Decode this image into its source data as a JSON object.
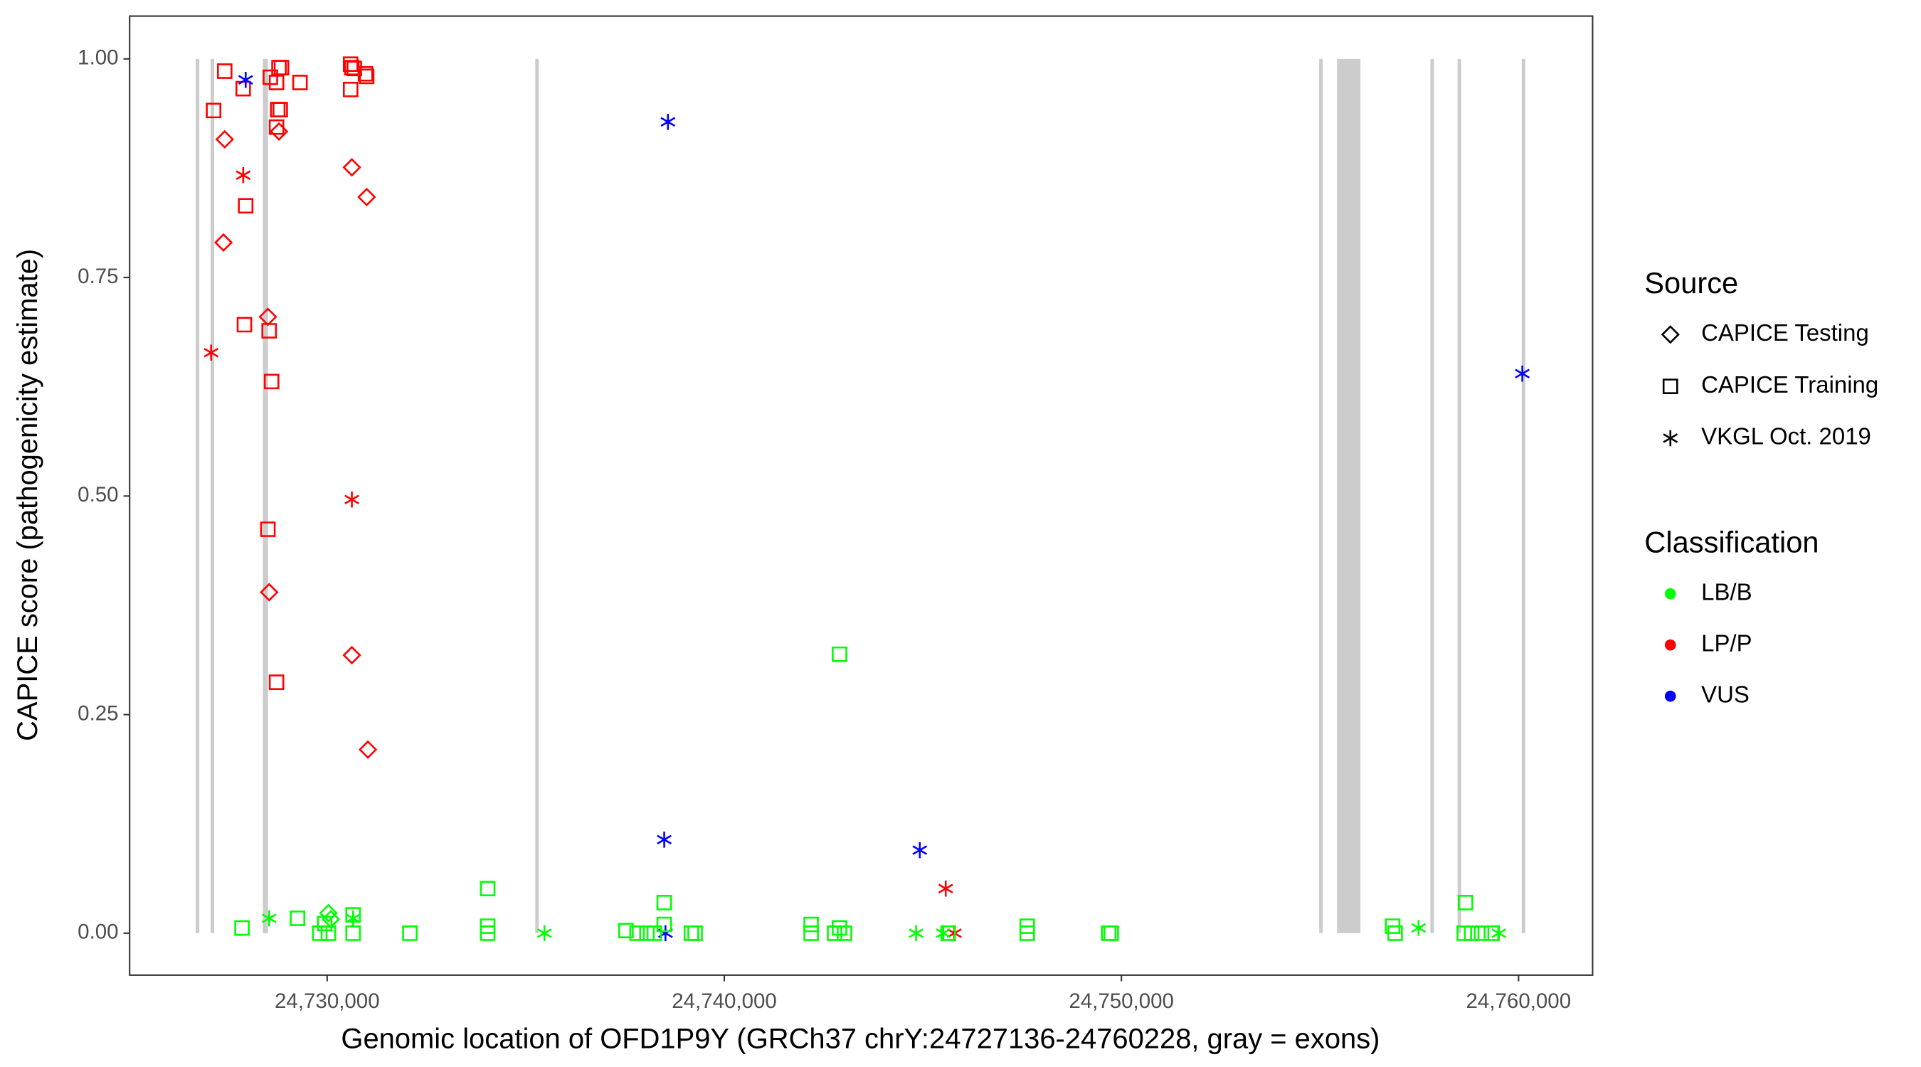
{
  "chart_data": {
    "type": "scatter",
    "x_label": "Genomic location of OFD1P9Y (GRCh37 chrY:24727136-24760228, gray = exons)",
    "y_label": "CAPICE score (pathogenicity estimate)",
    "xlim": [
      24725026,
      24761865
    ],
    "ylim": [
      -0.048,
      1.049
    ],
    "xticks": [
      {
        "value": 24730000,
        "label": "24,730,000"
      },
      {
        "value": 24740000,
        "label": "24,740,000"
      },
      {
        "value": 24750000,
        "label": "24,750,000"
      },
      {
        "value": 24760000,
        "label": "24,760,000"
      }
    ],
    "yticks": [
      {
        "value": 0,
        "label": "0.00"
      },
      {
        "value": 0.25,
        "label": "0.25"
      },
      {
        "value": 0.5,
        "label": "0.50"
      },
      {
        "value": 0.75,
        "label": "0.75"
      },
      {
        "value": 1,
        "label": "1.00"
      }
    ],
    "exon_color": "#cccccc",
    "exons": [
      [
        24726690,
        24726780
      ],
      [
        24727065,
        24727155
      ],
      [
        24728380,
        24728510
      ],
      [
        24735240,
        24735330
      ],
      [
        24754980,
        24755070
      ],
      [
        24755430,
        24756020
      ],
      [
        24757780,
        24757870
      ],
      [
        24758465,
        24758555
      ],
      [
        24760080,
        24760170
      ]
    ],
    "legend_source": {
      "title": "Source",
      "items": [
        {
          "name": "CAPICE Testing",
          "shape": "diamond"
        },
        {
          "name": "CAPICE Training",
          "shape": "square"
        },
        {
          "name": "VKGL Oct. 2019",
          "shape": "asterisk"
        }
      ]
    },
    "legend_classification": {
      "title": "Classification",
      "items": [
        {
          "name": "LB/B",
          "color": "#00ff00"
        },
        {
          "name": "LP/P",
          "color": "#ff0000"
        },
        {
          "name": "VUS",
          "color": "#0000ff"
        }
      ]
    },
    "series": [
      {
        "source": "CAPICE Training",
        "classification": "LP/P",
        "x": [
          24727420,
          24727140,
          24727886,
          24727948,
          24727917,
          24728570,
          24728725,
          24728787,
          24728850,
          24729316,
          24728756,
          24728819,
          24728725,
          24728539,
          24728601,
          24728508,
          24728725,
          24730591,
          24730622,
          24730684,
          24730591,
          24730964,
          24730995
        ],
        "y": [
          0.986,
          0.941,
          0.966,
          0.832,
          0.696,
          0.979,
          0.973,
          0.99,
          0.99,
          0.973,
          0.942,
          0.942,
          0.922,
          0.689,
          0.631,
          0.462,
          0.287,
          0.994,
          0.99,
          0.989,
          0.965,
          0.983,
          0.98
        ]
      },
      {
        "source": "CAPICE Testing",
        "classification": "LP/P",
        "x": [
          24727420,
          24727389,
          24728508,
          24728787,
          24728539,
          24730622,
          24730995,
          24730622,
          24731026
        ],
        "y": [
          0.908,
          0.79,
          0.705,
          0.917,
          0.39,
          0.876,
          0.842,
          0.318,
          0.21
        ]
      },
      {
        "source": "VKGL Oct. 2019",
        "classification": "LP/P",
        "x": [
          24727078,
          24727886,
          24730622,
          24745576,
          24745794
        ],
        "y": [
          0.664,
          0.867,
          0.496,
          0.051,
          0
        ]
      },
      {
        "source": "VKGL Oct. 2019",
        "classification": "VUS",
        "x": [
          24727948,
          24738581,
          24738488,
          24738519,
          24744923,
          24760095
        ],
        "y": [
          0.976,
          0.928,
          0.107,
          0,
          0.095,
          0.64
        ]
      },
      {
        "source": "CAPICE Training",
        "classification": "LB/B",
        "x": [
          24727855,
          24729254,
          24729813,
          24729938,
          24730031,
          24730653,
          24730653,
          24732083,
          24734042,
          24734042,
          24734042,
          24737524,
          24737804,
          24738053,
          24738239,
          24738488,
          24738488,
          24739172,
          24739265,
          24742187,
          24742187,
          24742902,
          24742778,
          24742902,
          24743027,
          24745638,
          24747628,
          24747628,
          24749680,
          24749742,
          24756830,
          24756892,
          24758665,
          24758634,
          24758820,
          24759069,
          24759318
        ],
        "y": [
          0.006,
          0.017,
          0,
          0.011,
          0,
          0.021,
          0,
          0,
          0.051,
          0.008,
          0,
          0.003,
          0,
          0,
          0,
          0.035,
          0.01,
          0,
          0,
          0.01,
          0,
          0.319,
          0,
          0.006,
          0,
          0,
          0.008,
          0,
          0,
          0,
          0.008,
          0,
          0.035,
          0,
          0,
          0,
          0
        ]
      },
      {
        "source": "CAPICE Testing",
        "classification": "LB/B",
        "x": [
          24730031,
          24730093
        ],
        "y": [
          0.023,
          0.016
        ]
      },
      {
        "source": "VKGL Oct. 2019",
        "classification": "LB/B",
        "x": [
          24728539,
          24730653,
          24735472,
          24744830,
          24745514,
          24757483,
          24759504
        ],
        "y": [
          0.017,
          0.017,
          0,
          0,
          0,
          0.006,
          0
        ]
      }
    ]
  }
}
